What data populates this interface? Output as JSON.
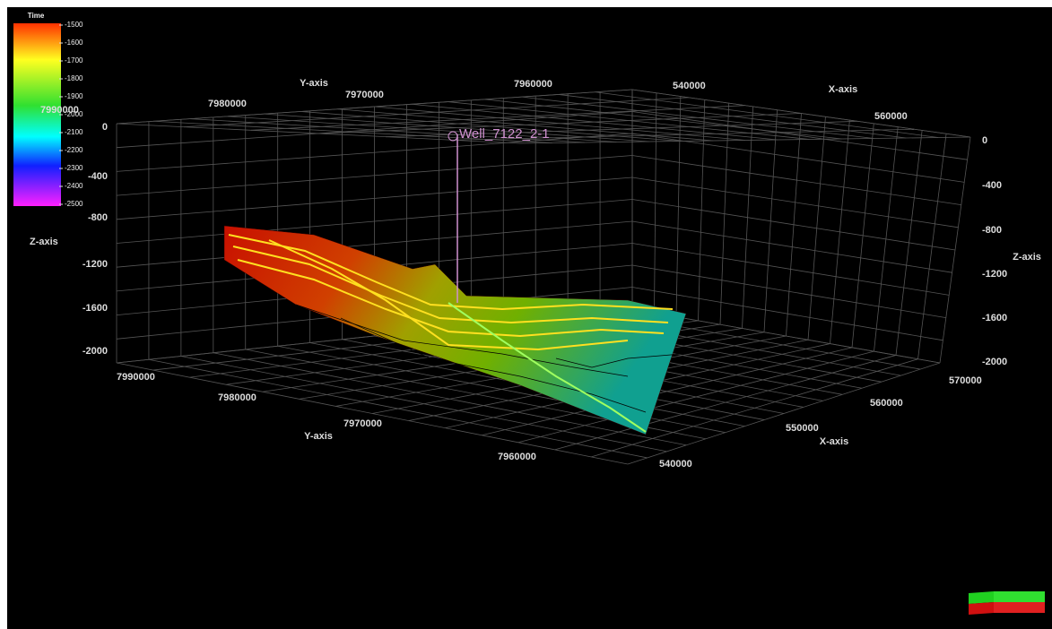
{
  "legend": {
    "title": "Time",
    "ticks": [
      -1500,
      -1600,
      -1700,
      -1800,
      -1900,
      -2000,
      -2100,
      -2200,
      -2300,
      -2400,
      -2500
    ]
  },
  "well": {
    "label": "Well_7122_2-1"
  },
  "top_axes": {
    "y_title": "Y-axis",
    "y_ticks": [
      7990000,
      7980000,
      7970000,
      7960000
    ],
    "x_title": "X-axis",
    "x_ticks": [
      540000,
      560000
    ]
  },
  "left_axis": {
    "title": "Z-axis",
    "ticks": [
      0,
      -400,
      -800,
      -1200,
      -1600,
      -2000
    ]
  },
  "right_axis": {
    "title": "Z-axis",
    "ticks": [
      0,
      -400,
      -800,
      -1200,
      -1600,
      -2000
    ]
  },
  "bottom_axes": {
    "y_title": "Y-axis",
    "y_ticks": [
      7990000,
      7980000,
      7970000,
      7960000
    ],
    "x_title": "X-axis",
    "x_ticks": [
      540000,
      550000,
      560000,
      570000
    ]
  }
}
